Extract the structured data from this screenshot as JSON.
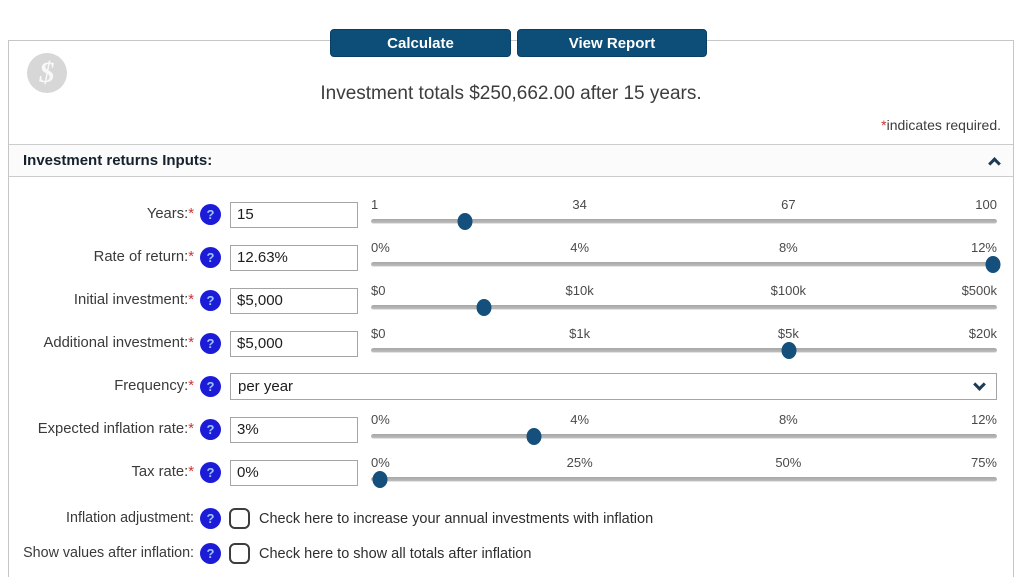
{
  "toolbar": {
    "calculate_label": "Calculate",
    "view_report_label": "View Report"
  },
  "header": {
    "title": "Investment totals $250,662.00 after 15 years.",
    "required_star": "*",
    "required_note": "indicates required."
  },
  "section": {
    "title": "Investment returns Inputs:"
  },
  "form": {
    "help_glyph": "?",
    "rows": [
      {
        "label": "Years:",
        "required_mark": "*",
        "value": "15",
        "slider": {
          "ticks": [
            "1",
            "34",
            "67",
            "100"
          ],
          "thumb_pct": 15
        }
      },
      {
        "label": "Rate of return:",
        "required_mark": "*",
        "value": "12.63%",
        "slider": {
          "ticks": [
            "0%",
            "4%",
            "8%",
            "12%"
          ],
          "thumb_pct": 99.3
        }
      },
      {
        "label": "Initial investment:",
        "required_mark": "*",
        "value": "$5,000",
        "slider": {
          "ticks": [
            "$0",
            "$10k",
            "$100k",
            "$500k"
          ],
          "thumb_pct": 18
        }
      },
      {
        "label": "Additional investment:",
        "required_mark": "*",
        "value": "$5,000",
        "slider": {
          "ticks": [
            "$0",
            "$1k",
            "$5k",
            "$20k"
          ],
          "thumb_pct": 66.8
        }
      },
      {
        "label": "Frequency:",
        "required_mark": "*",
        "value": "per year"
      },
      {
        "label": "Expected inflation rate:",
        "required_mark": "*",
        "value": "3%",
        "slider": {
          "ticks": [
            "0%",
            "4%",
            "8%",
            "12%"
          ],
          "thumb_pct": 26
        }
      },
      {
        "label": "Tax rate:",
        "required_mark": "*",
        "value": "0%",
        "slider": {
          "ticks": [
            "0%",
            "25%",
            "50%",
            "75%"
          ],
          "thumb_pct": 1.5
        }
      }
    ],
    "checkbox_rows": [
      {
        "label": "Inflation adjustment:",
        "checked": false,
        "text": "Check here to increase your annual investments with inflation"
      },
      {
        "label": "Show values after inflation:",
        "checked": false,
        "text": "Check here to show all totals after inflation"
      }
    ]
  },
  "colors": {
    "accent_navy": "#0d4e79",
    "help_blue": "#1c1cd8",
    "required_red": "#cc3333",
    "slider_track": "#b0b0b0"
  }
}
